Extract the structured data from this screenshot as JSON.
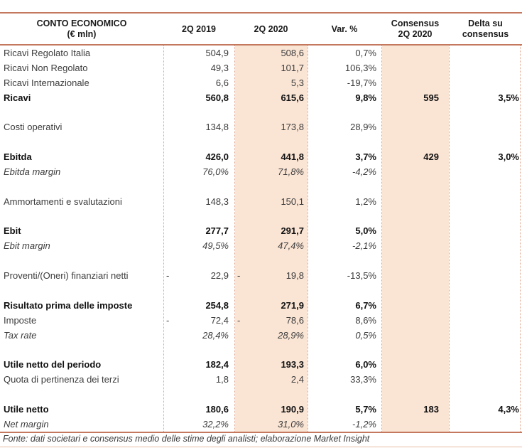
{
  "colors": {
    "line": "#c4795f",
    "line_light": "#e6bca6",
    "highlight_band": "#fae4d4",
    "dotted_separator": "#dfa489"
  },
  "header": {
    "title_line1": "CONTO ECONOMICO",
    "title_line2": "(€ mln)",
    "col_2019": "2Q 2019",
    "col_2020": "2Q 2020",
    "col_var": "Var. %",
    "col_consensus_line1": "Consensus",
    "col_consensus_line2": "2Q 2020",
    "col_delta_line1": "Delta su",
    "col_delta_line2": "consensus"
  },
  "table": {
    "rows": [
      {
        "label": "Ricavi Regolato Italia",
        "sign2019": "",
        "q2019": "504,9",
        "sign2020": "",
        "q2020": "508,6",
        "var": "0,7%",
        "consensus": "",
        "delta": "",
        "style": "normal"
      },
      {
        "label": "Ricavi Non Regolato",
        "sign2019": "",
        "q2019": "49,3",
        "sign2020": "",
        "q2020": "101,7",
        "var": "106,3%",
        "consensus": "",
        "delta": "",
        "style": "normal"
      },
      {
        "label": "Ricavi Internazionale",
        "sign2019": "",
        "q2019": "6,6",
        "sign2020": "",
        "q2020": "5,3",
        "var": "-19,7%",
        "consensus": "",
        "delta": "",
        "style": "normal"
      },
      {
        "label": "Ricavi",
        "sign2019": "",
        "q2019": "560,8",
        "sign2020": "",
        "q2020": "615,6",
        "var": "9,8%",
        "consensus": "595",
        "delta": "3,5%",
        "style": "bold"
      },
      {
        "style": "spacer"
      },
      {
        "label": "Costi operativi",
        "sign2019": "",
        "q2019": "134,8",
        "sign2020": "",
        "q2020": "173,8",
        "var": "28,9%",
        "consensus": "",
        "delta": "",
        "style": "normal"
      },
      {
        "style": "spacer"
      },
      {
        "label": "Ebitda",
        "sign2019": "",
        "q2019": "426,0",
        "sign2020": "",
        "q2020": "441,8",
        "var": "3,7%",
        "consensus": "429",
        "delta": "3,0%",
        "style": "bold"
      },
      {
        "label": "Ebitda margin",
        "sign2019": "",
        "q2019": "76,0%",
        "sign2020": "",
        "q2020": "71,8%",
        "var": "-4,2%",
        "consensus": "",
        "delta": "",
        "style": "italic"
      },
      {
        "style": "spacer"
      },
      {
        "label": "Ammortamenti e svalutazioni",
        "sign2019": "",
        "q2019": "148,3",
        "sign2020": "",
        "q2020": "150,1",
        "var": "1,2%",
        "consensus": "",
        "delta": "",
        "style": "normal"
      },
      {
        "style": "spacer"
      },
      {
        "label": "Ebit",
        "sign2019": "",
        "q2019": "277,7",
        "sign2020": "",
        "q2020": "291,7",
        "var": "5,0%",
        "consensus": "",
        "delta": "",
        "style": "bold"
      },
      {
        "label": "Ebit margin",
        "sign2019": "",
        "q2019": "49,5%",
        "sign2020": "",
        "q2020": "47,4%",
        "var": "-2,1%",
        "consensus": "",
        "delta": "",
        "style": "italic"
      },
      {
        "style": "spacer"
      },
      {
        "label": "Proventi/(Oneri) finanziari netti",
        "sign2019": "-",
        "q2019": "22,9",
        "sign2020": "-",
        "q2020": "19,8",
        "var": "-13,5%",
        "consensus": "",
        "delta": "",
        "style": "normal"
      },
      {
        "style": "spacer"
      },
      {
        "label": "Risultato prima delle imposte",
        "sign2019": "",
        "q2019": "254,8",
        "sign2020": "",
        "q2020": "271,9",
        "var": "6,7%",
        "consensus": "",
        "delta": "",
        "style": "bold"
      },
      {
        "label": "Imposte",
        "sign2019": "-",
        "q2019": "72,4",
        "sign2020": "-",
        "q2020": "78,6",
        "var": "8,6%",
        "consensus": "",
        "delta": "",
        "style": "normal"
      },
      {
        "label": "Tax rate",
        "sign2019": "",
        "q2019": "28,4%",
        "sign2020": "",
        "q2020": "28,9%",
        "var": "0,5%",
        "consensus": "",
        "delta": "",
        "style": "italic"
      },
      {
        "style": "spacer"
      },
      {
        "label": "Utile netto del periodo",
        "sign2019": "",
        "q2019": "182,4",
        "sign2020": "",
        "q2020": "193,3",
        "var": "6,0%",
        "consensus": "",
        "delta": "",
        "style": "bold"
      },
      {
        "label": "Quota di pertinenza dei terzi",
        "sign2019": "",
        "q2019": "1,8",
        "sign2020": "",
        "q2020": "2,4",
        "var": "33,3%",
        "consensus": "",
        "delta": "",
        "style": "normal"
      },
      {
        "style": "spacer"
      },
      {
        "label": "Utile netto",
        "sign2019": "",
        "q2019": "180,6",
        "sign2020": "",
        "q2020": "190,9",
        "var": "5,7%",
        "consensus": "183",
        "delta": "4,3%",
        "style": "bold"
      },
      {
        "label": "Net margin",
        "sign2019": "",
        "q2019": "32,2%",
        "sign2020": "",
        "q2020": "31,0%",
        "var": "-1,2%",
        "consensus": "",
        "delta": "",
        "style": "italic"
      }
    ]
  },
  "footer": {
    "source": "Fonte: dati societari e consensus medio delle stime degli analisti; elaborazione Market Insight"
  }
}
